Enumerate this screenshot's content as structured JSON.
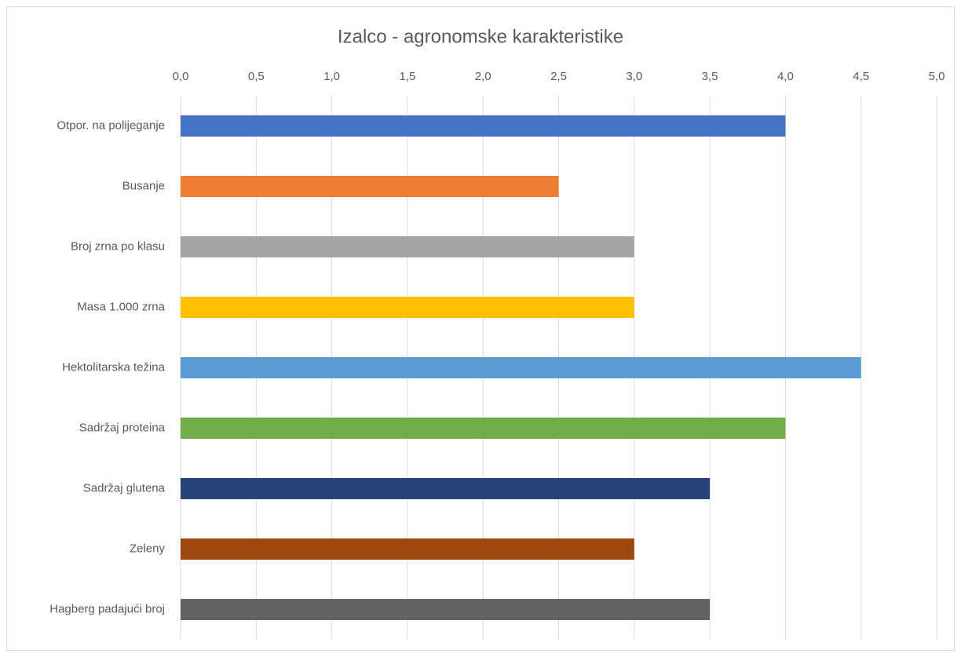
{
  "chart_data": {
    "type": "bar",
    "title": "Izalco - agronomske karakteristike",
    "categories": [
      "Otpor. na polijeganje",
      "Busanje",
      "Broj zrna po klasu",
      "Masa 1.000 zrna",
      "Hektolitarska težina",
      "Sadržaj proteina",
      "Sadržaj glutena",
      "Zeleny",
      "Hagberg padajući broj"
    ],
    "values": [
      4,
      2.5,
      3,
      3,
      4.5,
      4,
      3.5,
      3,
      3.5
    ],
    "colors": [
      "#4472c4",
      "#ed7d31",
      "#a5a5a5",
      "#ffc000",
      "#5b9bd5",
      "#70ad47",
      "#264478",
      "#9e480e",
      "#636363"
    ],
    "xlim": [
      0,
      5
    ],
    "xticks": [
      {
        "value": 0,
        "label": "0,0"
      },
      {
        "value": 0.5,
        "label": "0,5"
      },
      {
        "value": 1,
        "label": "1,0"
      },
      {
        "value": 1.5,
        "label": "1,5"
      },
      {
        "value": 2,
        "label": "2,0"
      },
      {
        "value": 2.5,
        "label": "2,5"
      },
      {
        "value": 3,
        "label": "3,0"
      },
      {
        "value": 3.5,
        "label": "3,5"
      },
      {
        "value": 4,
        "label": "4,0"
      },
      {
        "value": 4.5,
        "label": "4,5"
      },
      {
        "value": 5,
        "label": "5,0"
      }
    ],
    "grid": true
  }
}
